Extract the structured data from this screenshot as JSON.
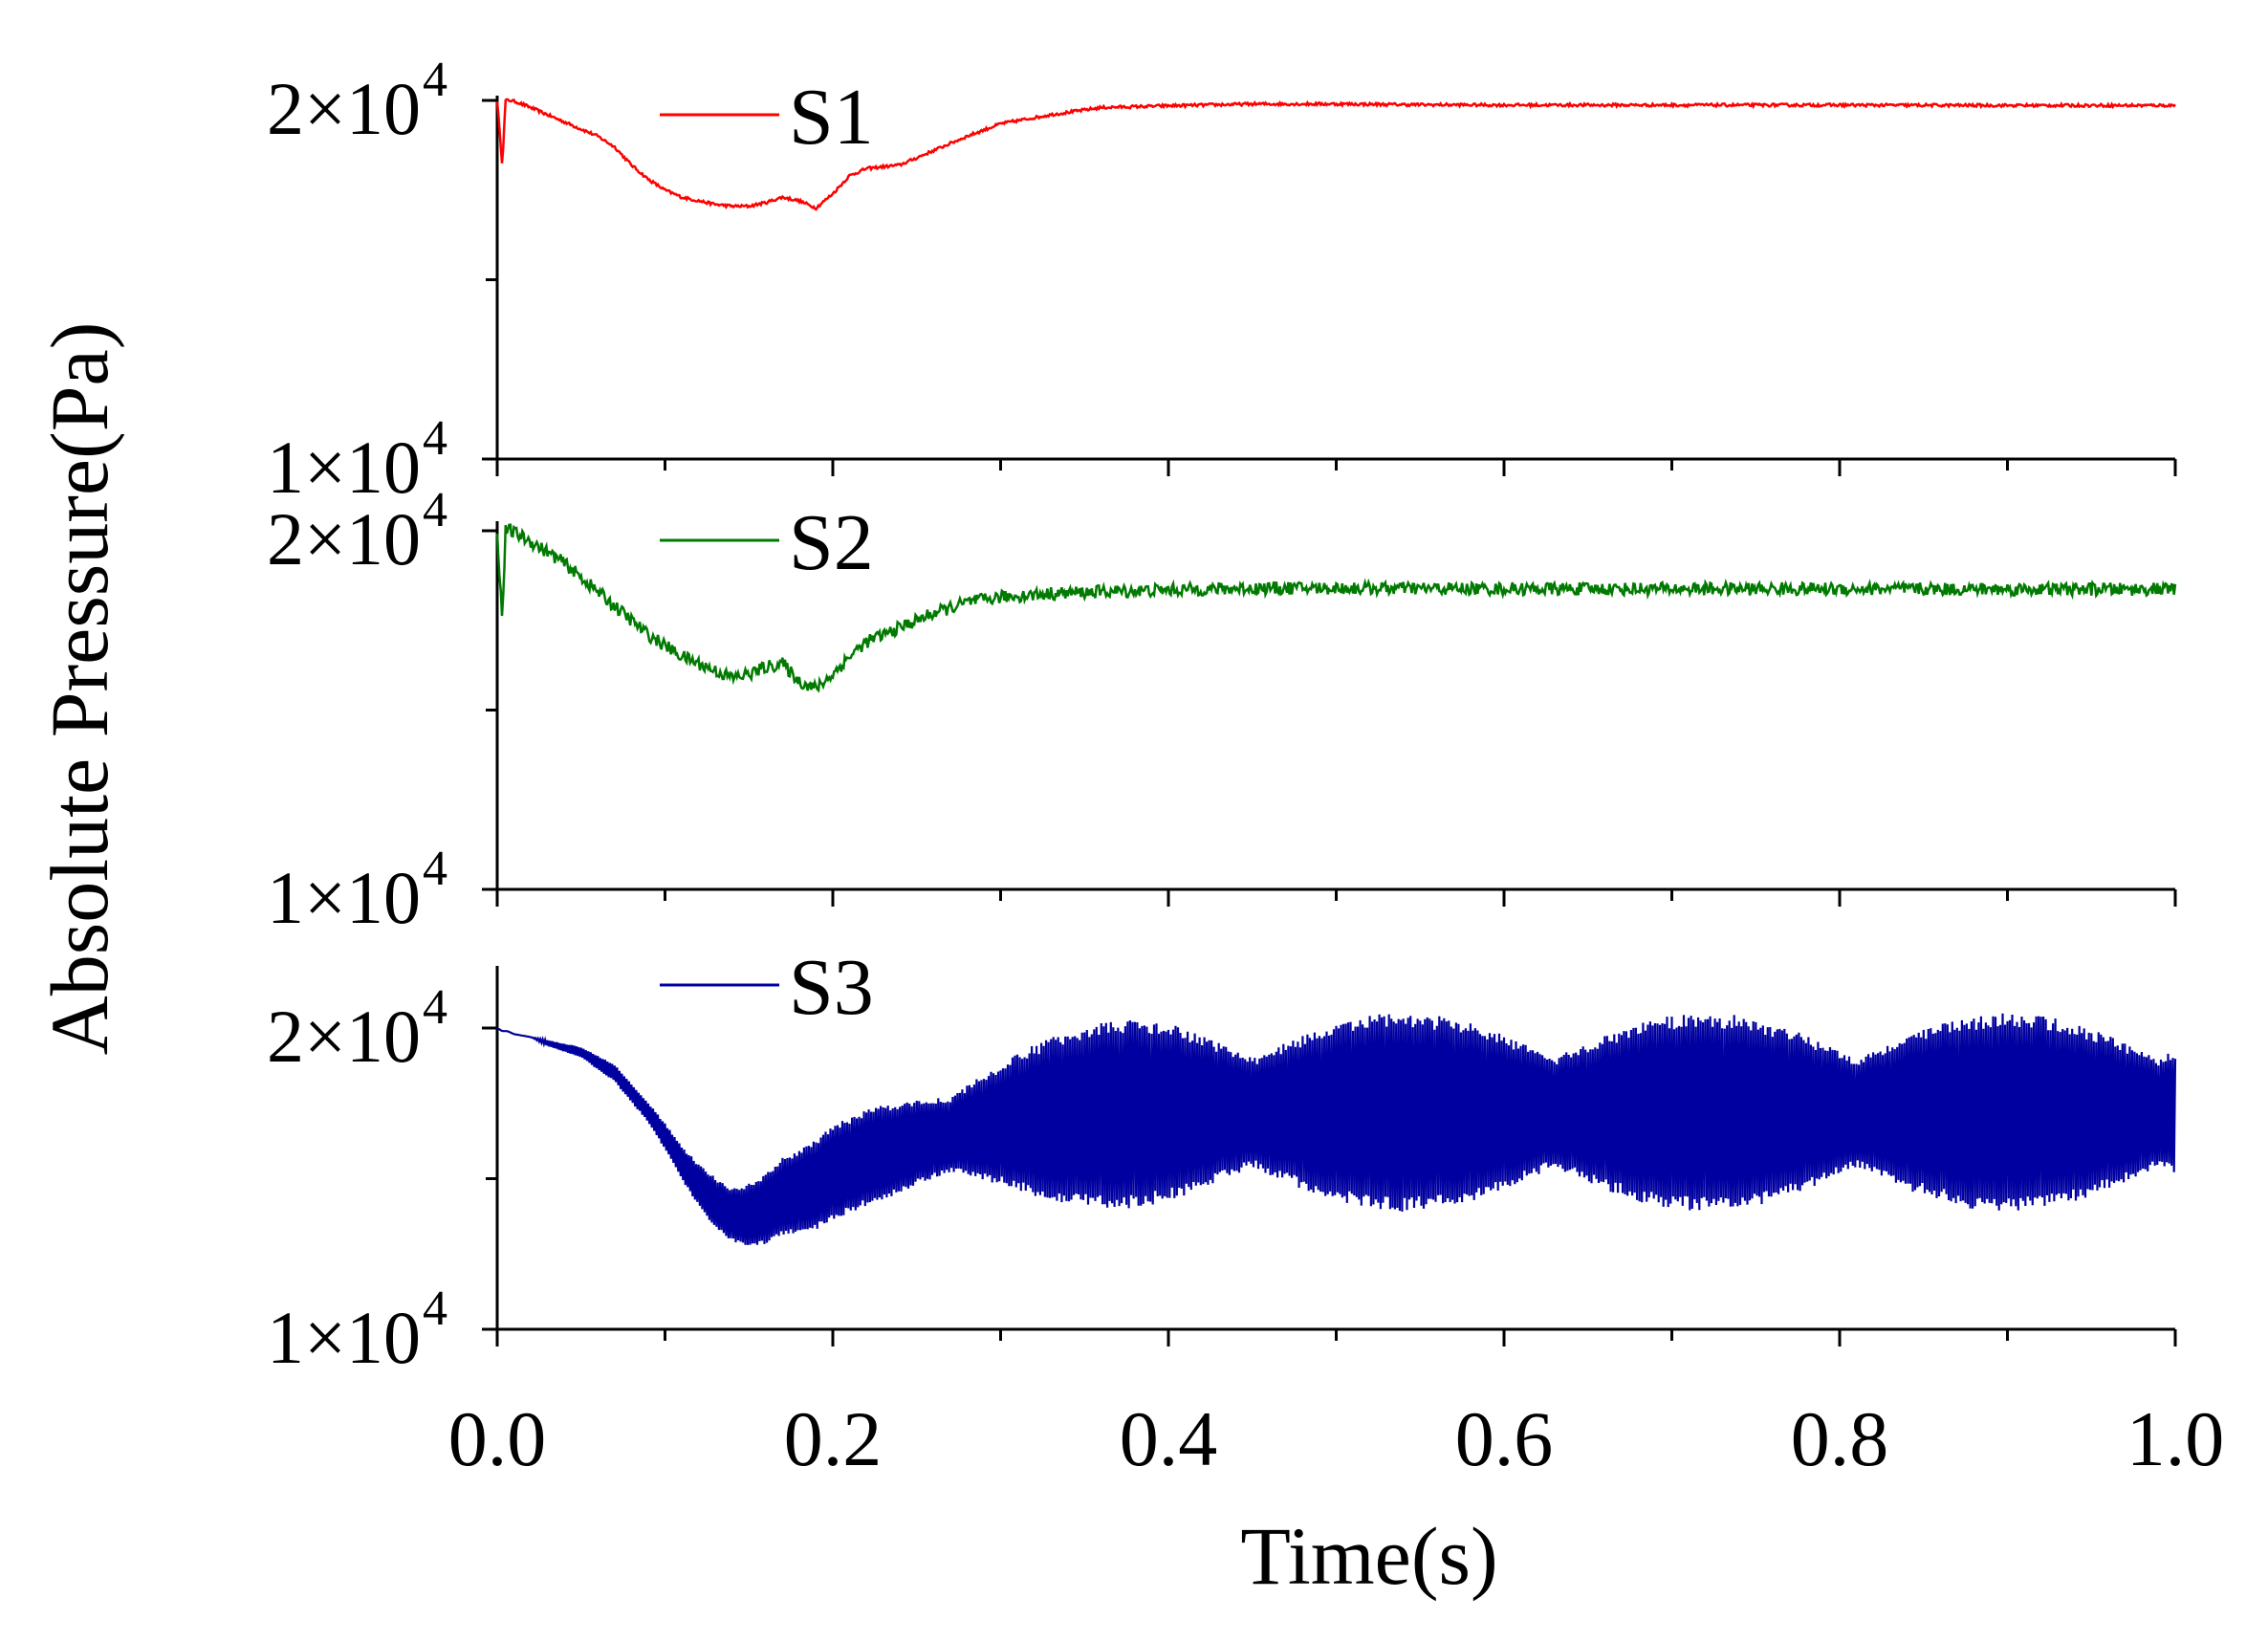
{
  "chart_data": {
    "type": "line",
    "xlabel": "Time(s)",
    "ylabel": "Absolute Pressure(Pa)",
    "xlim": [
      0.0,
      1.0
    ],
    "xticks": [
      "0.0",
      "0.2",
      "0.4",
      "0.6",
      "0.8",
      "1.0"
    ],
    "ytick_labels": {
      "upper": "2×10",
      "lower": "1×10",
      "exponent": "4"
    },
    "grid": false,
    "legend_position": "top-left inside each panel",
    "colors": {
      "S1": "#ff0000",
      "S2": "#007a00",
      "S3": "#0000a0"
    },
    "panels": [
      {
        "series": [
          {
            "name": "S1",
            "x": [
              0.0,
              0.003,
              0.005,
              0.008,
              0.012,
              0.02,
              0.03,
              0.04,
              0.05,
              0.06,
              0.07,
              0.08,
              0.09,
              0.1,
              0.11,
              0.12,
              0.13,
              0.14,
              0.15,
              0.16,
              0.17,
              0.18,
              0.19,
              0.2,
              0.21,
              0.22,
              0.24,
              0.26,
              0.28,
              0.3,
              0.33,
              0.36,
              0.4,
              0.45,
              0.5,
              0.55,
              0.6,
              0.7,
              0.8,
              0.9,
              1.0
            ],
            "y": [
              20000,
              18200,
              20000,
              20000,
              19950,
              19800,
              19600,
              19400,
              19200,
              19000,
              18700,
              18200,
              17800,
              17500,
              17300,
              17200,
              17100,
              17050,
              17050,
              17150,
              17300,
              17200,
              17000,
              17400,
              17900,
              18100,
              18200,
              18600,
              19000,
              19350,
              19600,
              19800,
              19850,
              19900,
              19900,
              19880,
              19870,
              19870,
              19870,
              19860,
              19860
            ],
            "noise_amplitude": 40
          }
        ],
        "ylim": [
          10000,
          20000
        ]
      },
      {
        "series": [
          {
            "name": "S2",
            "x": [
              0.0,
              0.003,
              0.005,
              0.008,
              0.012,
              0.02,
              0.03,
              0.04,
              0.05,
              0.06,
              0.07,
              0.08,
              0.09,
              0.1,
              0.11,
              0.12,
              0.13,
              0.14,
              0.15,
              0.16,
              0.17,
              0.18,
              0.19,
              0.2,
              0.21,
              0.22,
              0.24,
              0.26,
              0.28,
              0.3,
              0.33,
              0.36,
              0.4,
              0.45,
              0.5,
              0.6,
              0.7,
              0.8,
              0.9,
              1.0
            ],
            "y": [
              20000,
              17500,
              20000,
              20000,
              19900,
              19700,
              19400,
              19100,
              18700,
              18300,
              17900,
              17500,
              17100,
              16800,
              16500,
              16300,
              16100,
              15900,
              16000,
              16200,
              16300,
              15800,
              15600,
              16000,
              16500,
              16900,
              17300,
              17700,
              18000,
              18150,
              18250,
              18300,
              18350,
              18400,
              18400,
              18380,
              18380,
              18380,
              18370,
              18370
            ],
            "noise_amplitude": 180
          }
        ],
        "ylim": [
          10000,
          20000
        ]
      },
      {
        "series": [
          {
            "name": "S3",
            "x": [
              0.0,
              0.003,
              0.006,
              0.01,
              0.02,
              0.03,
              0.05,
              0.07,
              0.09,
              0.1,
              0.11,
              0.12,
              0.13,
              0.14,
              0.15,
              0.16,
              0.17,
              0.18,
              0.19,
              0.2,
              0.22,
              0.25,
              0.28,
              0.3,
              0.33,
              0.36,
              0.4,
              0.5,
              0.6,
              0.7,
              0.8,
              0.9,
              1.0
            ],
            "y": [
              20000,
              19900,
              19900,
              19800,
              19700,
              19500,
              19200,
              18500,
              17200,
              16400,
              15500,
              14800,
              14200,
              13800,
              13800,
              14000,
              14400,
              14600,
              14800,
              15200,
              15700,
              16200,
              16600,
              16800,
              17000,
              17100,
              17200,
              17200,
              17200,
              17200,
              17200,
              17200,
              17200
            ],
            "amplitude": [
              0,
              0,
              0,
              0,
              0,
              100,
              200,
              400,
              600,
              700,
              800,
              900,
              1000,
              1000,
              1100,
              1200,
              1300,
              1400,
              1500,
              1600,
              1800,
              2000,
              2400,
              2600,
              2900,
              3100,
              3300,
              3300,
              3300,
              3300,
              3300,
              3300,
              3300
            ]
          }
        ],
        "ylim": [
          10000,
          20000
        ]
      }
    ]
  }
}
